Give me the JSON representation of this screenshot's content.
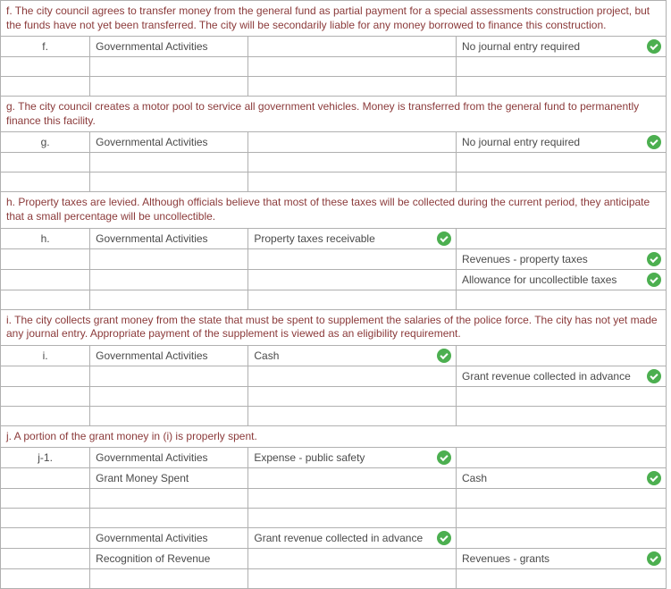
{
  "colors": {
    "border": "#b0b0b0",
    "desc_text": "#8b3a3a",
    "body_text": "#4a4a4a",
    "check_bg": "#4caf50",
    "check_mark": "#ffffff"
  },
  "sections": {
    "f": {
      "desc": "f. The city council agrees to transfer money from the general fund as partial payment for a special assessments construction project, but the funds have not yet been transferred. The city will be secondarily liable for any money borrowed to finance this construction.",
      "rows": [
        {
          "id": "f.",
          "activity": "Governmental Activities",
          "debit": "",
          "credit": "No journal entry required",
          "check_deb": false,
          "check_cred": true
        },
        {
          "id": "",
          "activity": "",
          "debit": "",
          "credit": "",
          "check_deb": false,
          "check_cred": false
        },
        {
          "id": "",
          "activity": "",
          "debit": "",
          "credit": "",
          "check_deb": false,
          "check_cred": false
        }
      ]
    },
    "g": {
      "desc": "g. The city council creates a motor pool to service all government vehicles. Money is transferred from the general fund to permanently finance this facility.",
      "rows": [
        {
          "id": "g.",
          "activity": "Governmental Activities",
          "debit": "",
          "credit": "No journal entry required",
          "check_deb": false,
          "check_cred": true
        },
        {
          "id": "",
          "activity": "",
          "debit": "",
          "credit": "",
          "check_deb": false,
          "check_cred": false
        },
        {
          "id": "",
          "activity": "",
          "debit": "",
          "credit": "",
          "check_deb": false,
          "check_cred": false
        }
      ]
    },
    "h": {
      "desc": "h. Property taxes are levied. Although officials believe that most of these taxes will be collected during the current period, they anticipate that a small percentage will be uncollectible.",
      "rows": [
        {
          "id": "h.",
          "activity": "Governmental Activities",
          "debit": "Property taxes receivable",
          "credit": "",
          "check_deb": true,
          "check_cred": false
        },
        {
          "id": "",
          "activity": "",
          "debit": "",
          "credit": "Revenues - property taxes",
          "check_deb": false,
          "check_cred": true
        },
        {
          "id": "",
          "activity": "",
          "debit": "",
          "credit": "Allowance for uncollectible taxes",
          "check_deb": false,
          "check_cred": true
        },
        {
          "id": "",
          "activity": "",
          "debit": "",
          "credit": "",
          "check_deb": false,
          "check_cred": false
        }
      ]
    },
    "i": {
      "desc": "i. The city collects grant money from the state that must be spent to supplement the salaries of the police force. The city has not yet made any journal entry. Appropriate payment of the supplement is viewed as an eligibility requirement.",
      "rows": [
        {
          "id": "i.",
          "activity": "Governmental Activities",
          "debit": "Cash",
          "credit": "",
          "check_deb": true,
          "check_cred": false
        },
        {
          "id": "",
          "activity": "",
          "debit": "",
          "credit": "Grant revenue collected in advance",
          "check_deb": false,
          "check_cred": true
        },
        {
          "id": "",
          "activity": "",
          "debit": "",
          "credit": "",
          "check_deb": false,
          "check_cred": false
        },
        {
          "id": "",
          "activity": "",
          "debit": "",
          "credit": "",
          "check_deb": false,
          "check_cred": false
        }
      ]
    },
    "j": {
      "desc": "j. A portion of the grant money in (i) is properly spent.",
      "rows": [
        {
          "id": "j-1.",
          "activity": "Governmental Activities",
          "debit": "Expense - public safety",
          "credit": "",
          "check_deb": true,
          "check_cred": false
        },
        {
          "id": "",
          "activity": "Grant Money Spent",
          "debit": "",
          "credit": "Cash",
          "check_deb": false,
          "check_cred": true
        },
        {
          "id": "",
          "activity": "",
          "debit": "",
          "credit": "",
          "check_deb": false,
          "check_cred": false
        },
        {
          "id": "",
          "activity": "",
          "debit": "",
          "credit": "",
          "check_deb": false,
          "check_cred": false
        },
        {
          "id": "",
          "activity": "Governmental Activities",
          "debit": "Grant revenue collected in advance",
          "credit": "",
          "check_deb": true,
          "check_cred": false
        },
        {
          "id": "",
          "activity": "Recognition of Revenue",
          "debit": "",
          "credit": "Revenues - grants",
          "check_deb": false,
          "check_cred": true
        },
        {
          "id": "",
          "activity": "",
          "debit": "",
          "credit": "",
          "check_deb": false,
          "check_cred": false
        }
      ]
    }
  }
}
